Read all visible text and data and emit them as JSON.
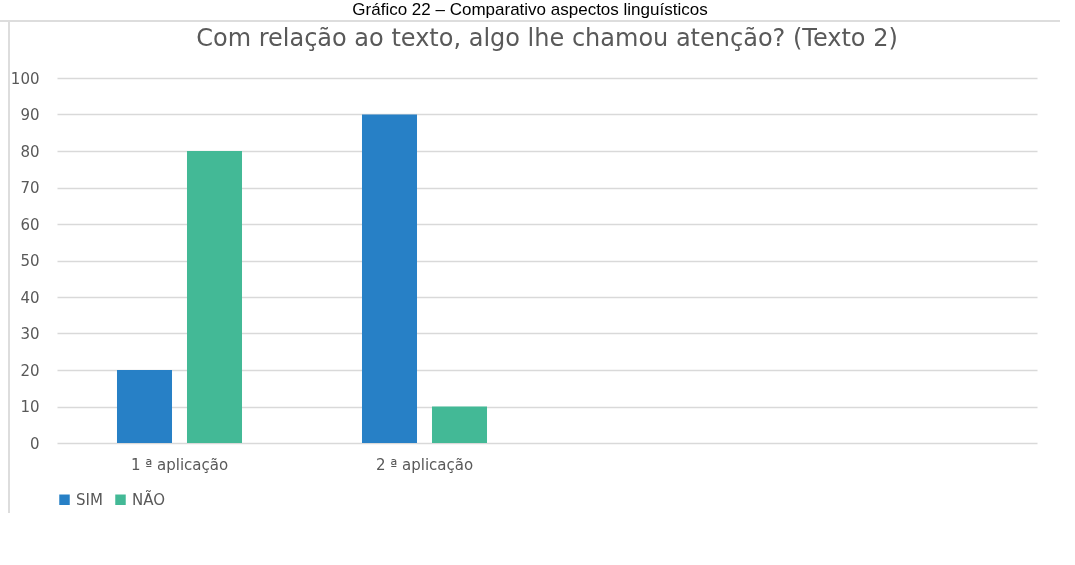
{
  "chart_data": {
    "type": "bar",
    "title": "Com relação ao texto, algo lhe chamou atenção? (Texto 2)",
    "annotations": [
      "Gráfico 22 – Comparativo aspectos linguísticos"
    ],
    "categories": [
      "1 ª aplicação",
      "2 ª aplicação",
      null,
      null
    ],
    "series": [
      {
        "name": "SIM",
        "color": "#2780c6",
        "values": [
          20,
          90,
          null,
          null
        ]
      },
      {
        "name": "NÃO",
        "color": "#43b996",
        "values": [
          80,
          10,
          null,
          null
        ]
      }
    ],
    "ylim": [
      0,
      100
    ],
    "yticks": [
      0,
      10,
      20,
      30,
      40,
      50,
      60,
      70,
      80,
      90,
      100
    ],
    "grid": "y",
    "legend": "bottom"
  }
}
